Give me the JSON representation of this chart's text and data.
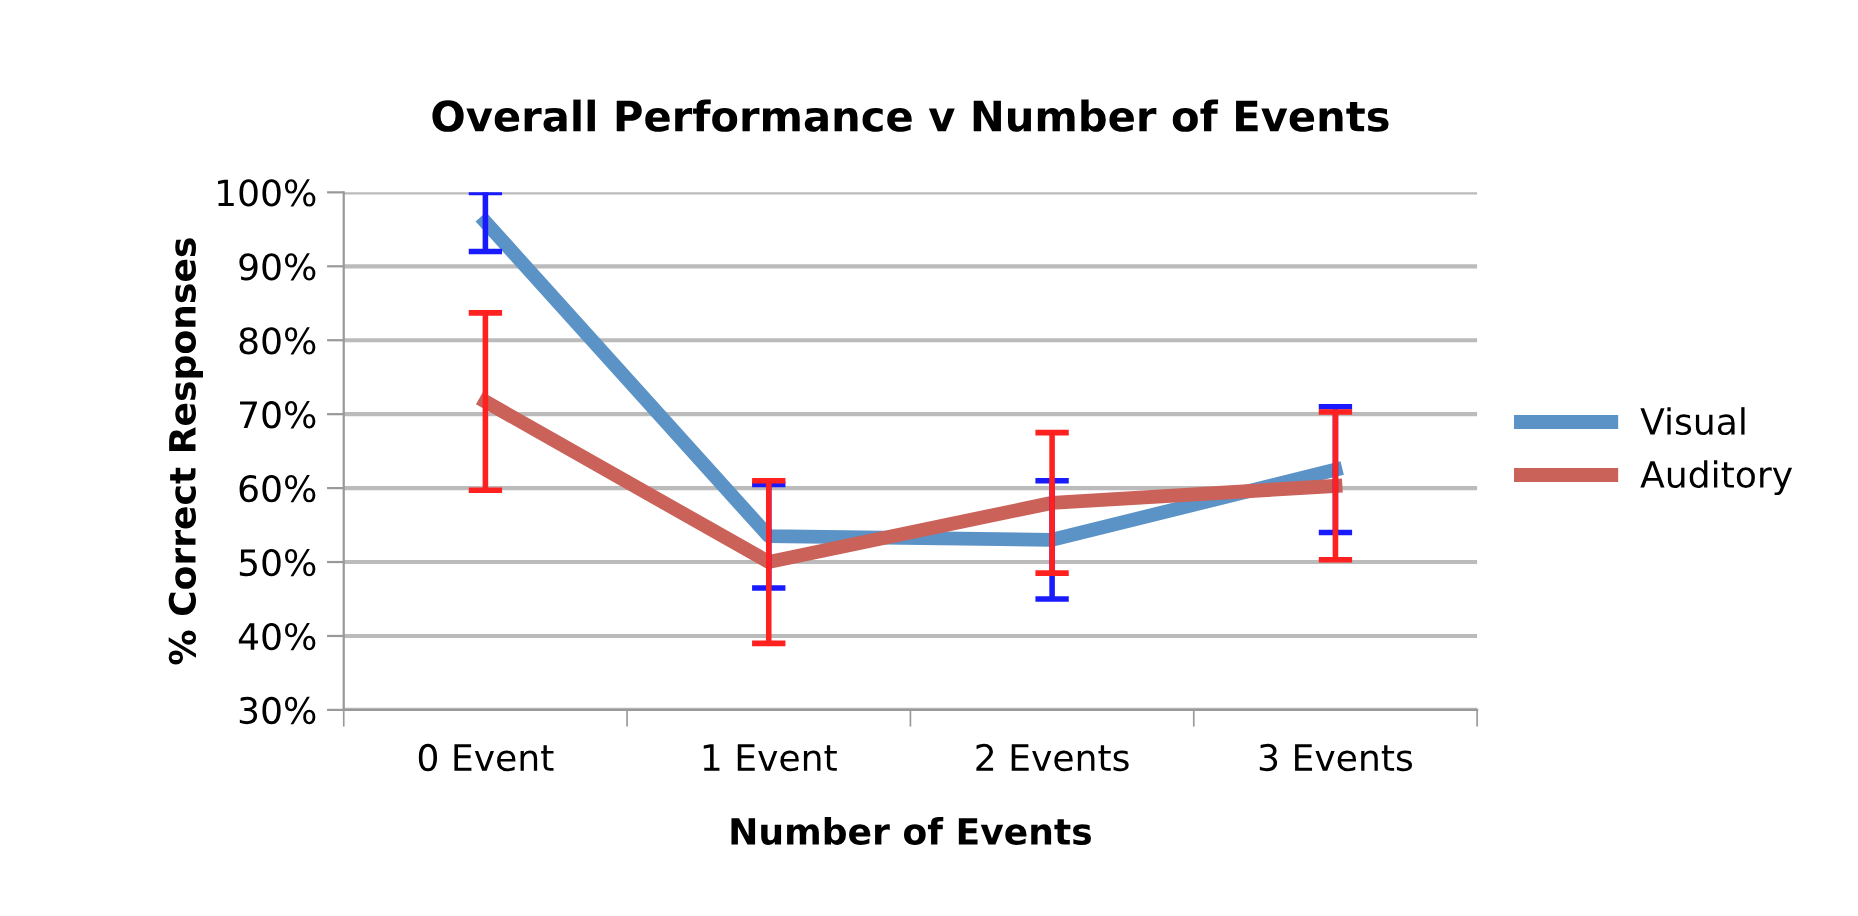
{
  "chart_data": {
    "type": "line",
    "title": "Overall Performance v Number of Events",
    "xlabel": "Number of Events",
    "ylabel": "% Correct Responses",
    "categories": [
      "0 Event",
      "1 Event",
      "2 Events",
      "3 Events"
    ],
    "series": [
      {
        "name": "Visual",
        "color": "#5b93c7",
        "values": [
          96,
          53.5,
          53,
          62.5
        ],
        "errors": [
          4,
          7,
          8,
          8.5
        ]
      },
      {
        "name": "Auditory",
        "color": "#cb6259",
        "values": [
          71.7,
          50,
          58,
          60.3
        ],
        "errors": [
          12,
          11,
          9.5,
          10
        ]
      }
    ],
    "ylim": [
      30,
      100
    ],
    "yticks": [
      {
        "value": 30,
        "label": "30%"
      },
      {
        "value": 40,
        "label": "40%"
      },
      {
        "value": 50,
        "label": "50%"
      },
      {
        "value": 60,
        "label": "60%"
      },
      {
        "value": 70,
        "label": "70%"
      },
      {
        "value": 80,
        "label": "80%"
      },
      {
        "value": 90,
        "label": "90%"
      },
      {
        "value": 100,
        "label": "100%"
      }
    ],
    "grid": "y",
    "legend": "right",
    "marker": "none",
    "line_style": "solid"
  }
}
